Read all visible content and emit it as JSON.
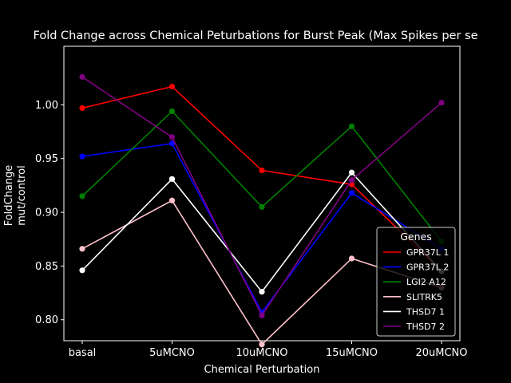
{
  "chart_data": {
    "type": "line",
    "title": "Fold Change across Chemical Peturbations for Burst Peak (Max Spikes per se",
    "xlabel": "Chemical Perturbation",
    "ylabel_line1": "FoldChange",
    "ylabel_line2": "mut/control",
    "categories": [
      "basal",
      "5uMCNO",
      "10uMCNO",
      "15uMCNO",
      "20uMCNO"
    ],
    "ylim": [
      0.7805,
      1.0545
    ],
    "yticks": [
      "0.80",
      "0.85",
      "0.90",
      "0.95",
      "1.00"
    ],
    "ytick_values": [
      0.8,
      0.85,
      0.9,
      0.95,
      1.0
    ],
    "legend_title": "Genes",
    "legend_position": "lower-right",
    "series": [
      {
        "name": "GPR37L 1",
        "color": "#ff0000",
        "values": [
          0.997,
          1.017,
          0.939,
          0.926,
          0.845
        ]
      },
      {
        "name": "GPR37L 2",
        "color": "#0000ff",
        "values": [
          0.952,
          0.964,
          0.807,
          0.918,
          0.866
        ]
      },
      {
        "name": "LGI2 A12",
        "color": "#008000",
        "values": [
          0.915,
          0.994,
          0.905,
          0.98,
          0.873
        ]
      },
      {
        "name": "SLITRK5",
        "color": "#ffc0cb",
        "values": [
          0.866,
          0.911,
          0.777,
          0.857,
          0.83
        ]
      },
      {
        "name": "THSD7 1",
        "color": "#ffffff",
        "values": [
          0.846,
          0.931,
          0.826,
          0.937,
          0.845
        ]
      },
      {
        "name": "THSD7 2",
        "color": "#800080",
        "values": [
          1.026,
          0.97,
          0.804,
          0.93,
          1.002
        ]
      }
    ]
  }
}
